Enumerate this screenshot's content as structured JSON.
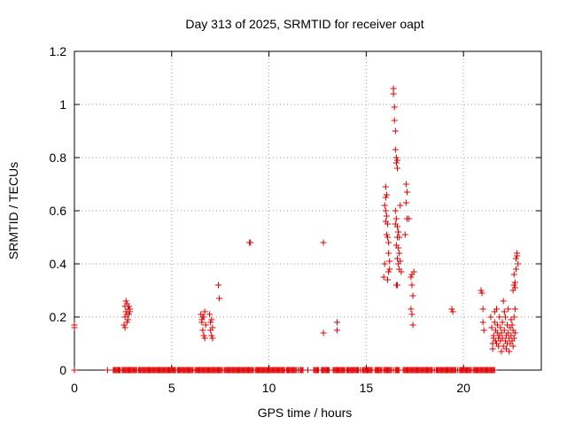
{
  "chart_data": {
    "type": "scatter",
    "title": "Day 313 of 2025, SRMTID for receiver oapt",
    "xlabel": "GPS time / hours",
    "ylabel": "SRMTID / TECUs",
    "xlim": [
      0,
      24
    ],
    "ylim": [
      0,
      1.2
    ],
    "xticks": [
      0,
      5,
      10,
      15,
      20
    ],
    "yticks": [
      0,
      0.2,
      0.4,
      0.6,
      0.8,
      1,
      1.2
    ],
    "ytick_labels": [
      "0",
      "0.2",
      "0.4",
      "0.6",
      "0.8",
      "1",
      "1.2"
    ],
    "grid": true,
    "marker": "+",
    "color": "#e00000",
    "series": [
      {
        "name": "SRMTID",
        "points": [
          [
            0.0,
            0.17
          ],
          [
            0.0,
            0.16
          ],
          [
            0.0,
            0.0
          ],
          [
            2.55,
            0.17
          ],
          [
            2.6,
            0.2
          ],
          [
            2.6,
            0.24
          ],
          [
            2.65,
            0.26
          ],
          [
            2.65,
            0.22
          ],
          [
            2.7,
            0.25
          ],
          [
            2.7,
            0.21
          ],
          [
            2.75,
            0.23
          ],
          [
            2.75,
            0.19
          ],
          [
            2.8,
            0.24
          ],
          [
            2.85,
            0.22
          ],
          [
            2.85,
            0.23
          ],
          [
            2.6,
            0.16
          ],
          [
            2.7,
            0.18
          ],
          [
            2.8,
            0.21
          ],
          [
            6.5,
            0.21
          ],
          [
            6.55,
            0.19
          ],
          [
            6.6,
            0.2
          ],
          [
            6.6,
            0.15
          ],
          [
            6.65,
            0.13
          ],
          [
            6.7,
            0.22
          ],
          [
            6.7,
            0.12
          ],
          [
            6.75,
            0.17
          ],
          [
            6.55,
            0.18
          ],
          [
            6.65,
            0.2
          ],
          [
            6.95,
            0.21
          ],
          [
            7.0,
            0.18
          ],
          [
            7.0,
            0.15
          ],
          [
            7.05,
            0.13
          ],
          [
            7.05,
            0.19
          ],
          [
            7.1,
            0.12
          ],
          [
            7.1,
            0.16
          ],
          [
            7.4,
            0.32
          ],
          [
            7.45,
            0.27
          ],
          [
            9.0,
            0.48
          ],
          [
            9.05,
            0.48
          ],
          [
            12.8,
            0.48
          ],
          [
            12.8,
            0.14
          ],
          [
            13.5,
            0.18
          ],
          [
            13.5,
            0.15
          ],
          [
            15.9,
            0.35
          ],
          [
            15.95,
            0.4
          ],
          [
            16.0,
            0.65
          ],
          [
            16.0,
            0.6
          ],
          [
            16.05,
            0.66
          ],
          [
            16.0,
            0.69
          ],
          [
            16.05,
            0.58
          ],
          [
            16.1,
            0.55
          ],
          [
            16.1,
            0.5
          ],
          [
            16.15,
            0.48
          ],
          [
            16.15,
            0.44
          ],
          [
            16.2,
            0.41
          ],
          [
            16.2,
            0.38
          ],
          [
            16.1,
            0.34
          ],
          [
            16.15,
            0.37
          ],
          [
            16.05,
            0.51
          ],
          [
            15.95,
            0.62
          ],
          [
            16.0,
            0.56
          ],
          [
            16.4,
            1.06
          ],
          [
            16.4,
            1.04
          ],
          [
            16.45,
            0.99
          ],
          [
            16.45,
            0.94
          ],
          [
            16.5,
            0.9
          ],
          [
            16.5,
            0.83
          ],
          [
            16.55,
            0.8
          ],
          [
            16.6,
            0.79
          ],
          [
            16.55,
            0.78
          ],
          [
            16.6,
            0.76
          ],
          [
            16.5,
            0.6
          ],
          [
            16.55,
            0.57
          ],
          [
            16.5,
            0.55
          ],
          [
            16.6,
            0.54
          ],
          [
            16.65,
            0.52
          ],
          [
            16.6,
            0.5
          ],
          [
            16.55,
            0.47
          ],
          [
            16.65,
            0.46
          ],
          [
            16.7,
            0.44
          ],
          [
            16.6,
            0.42
          ],
          [
            16.65,
            0.4
          ],
          [
            16.7,
            0.38
          ],
          [
            16.55,
            0.32
          ],
          [
            16.6,
            0.32
          ],
          [
            16.75,
            0.41
          ],
          [
            16.8,
            0.37
          ],
          [
            16.75,
            0.62
          ],
          [
            16.65,
            0.52
          ],
          [
            16.7,
            0.5
          ],
          [
            17.05,
            0.7
          ],
          [
            17.1,
            0.67
          ],
          [
            17.05,
            0.63
          ],
          [
            17.1,
            0.57
          ],
          [
            17.0,
            0.51
          ],
          [
            17.2,
            0.57
          ],
          [
            17.3,
            0.35
          ],
          [
            17.35,
            0.36
          ],
          [
            17.35,
            0.32
          ],
          [
            17.4,
            0.28
          ],
          [
            17.3,
            0.23
          ],
          [
            17.35,
            0.21
          ],
          [
            17.4,
            0.17
          ],
          [
            17.45,
            0.37
          ],
          [
            19.4,
            0.23
          ],
          [
            19.45,
            0.22
          ],
          [
            20.9,
            0.3
          ],
          [
            20.95,
            0.29
          ],
          [
            21.0,
            0.23
          ],
          [
            21.0,
            0.18
          ],
          [
            21.05,
            0.15
          ],
          [
            21.4,
            0.2
          ],
          [
            21.45,
            0.16
          ],
          [
            21.5,
            0.1
          ],
          [
            21.5,
            0.08
          ],
          [
            21.55,
            0.13
          ],
          [
            21.55,
            0.12
          ],
          [
            21.6,
            0.22
          ],
          [
            21.6,
            0.18
          ],
          [
            21.65,
            0.15
          ],
          [
            21.65,
            0.11
          ],
          [
            21.7,
            0.23
          ],
          [
            21.7,
            0.1
          ],
          [
            21.75,
            0.14
          ],
          [
            21.75,
            0.17
          ],
          [
            21.8,
            0.12
          ],
          [
            21.8,
            0.09
          ],
          [
            21.85,
            0.2
          ],
          [
            21.85,
            0.13
          ],
          [
            21.9,
            0.16
          ],
          [
            21.9,
            0.11
          ],
          [
            21.95,
            0.14
          ],
          [
            21.95,
            0.07
          ],
          [
            22.0,
            0.18
          ],
          [
            22.0,
            0.12
          ],
          [
            22.05,
            0.09
          ],
          [
            22.05,
            0.26
          ],
          [
            22.1,
            0.15
          ],
          [
            22.1,
            0.22
          ],
          [
            22.15,
            0.11
          ],
          [
            22.15,
            0.2
          ],
          [
            22.2,
            0.08
          ],
          [
            22.2,
            0.13
          ],
          [
            22.25,
            0.17
          ],
          [
            22.25,
            0.1
          ],
          [
            22.3,
            0.14
          ],
          [
            22.3,
            0.23
          ],
          [
            22.35,
            0.07
          ],
          [
            22.35,
            0.12
          ],
          [
            22.4,
            0.16
          ],
          [
            22.4,
            0.1
          ],
          [
            22.45,
            0.19
          ],
          [
            22.45,
            0.13
          ],
          [
            22.5,
            0.11
          ],
          [
            22.5,
            0.17
          ],
          [
            22.55,
            0.15
          ],
          [
            22.55,
            0.09
          ],
          [
            22.6,
            0.12
          ],
          [
            22.6,
            0.2
          ],
          [
            22.65,
            0.14
          ],
          [
            22.65,
            0.23
          ],
          [
            22.55,
            0.3
          ],
          [
            22.6,
            0.32
          ],
          [
            22.6,
            0.36
          ],
          [
            22.65,
            0.33
          ],
          [
            22.7,
            0.38
          ],
          [
            22.7,
            0.42
          ],
          [
            22.75,
            0.43
          ],
          [
            22.75,
            0.44
          ],
          [
            22.8,
            0.4
          ],
          [
            22.65,
            0.31
          ]
        ],
        "zero_runs": [
          [
            2.0,
            2.35
          ],
          [
            2.45,
            3.2
          ],
          [
            3.3,
            5.2
          ],
          [
            5.3,
            6.1
          ],
          [
            6.2,
            7.6
          ],
          [
            7.7,
            9.2
          ],
          [
            9.3,
            10.8
          ],
          [
            10.9,
            11.4
          ],
          [
            11.6,
            11.75
          ],
          [
            12.3,
            12.55
          ],
          [
            12.7,
            13.1
          ],
          [
            13.3,
            13.9
          ],
          [
            14.0,
            14.6
          ],
          [
            14.8,
            15.3
          ],
          [
            15.45,
            15.8
          ],
          [
            15.9,
            16.3
          ],
          [
            16.5,
            16.7
          ],
          [
            16.9,
            17.9
          ],
          [
            18.0,
            18.4
          ],
          [
            18.6,
            19.6
          ],
          [
            19.8,
            20.4
          ],
          [
            20.5,
            21.6
          ]
        ],
        "zero_singles": [
          1.7,
          11.5,
          12.0,
          14.7,
          16.4,
          17.95,
          18.5,
          19.7
        ]
      }
    ]
  }
}
